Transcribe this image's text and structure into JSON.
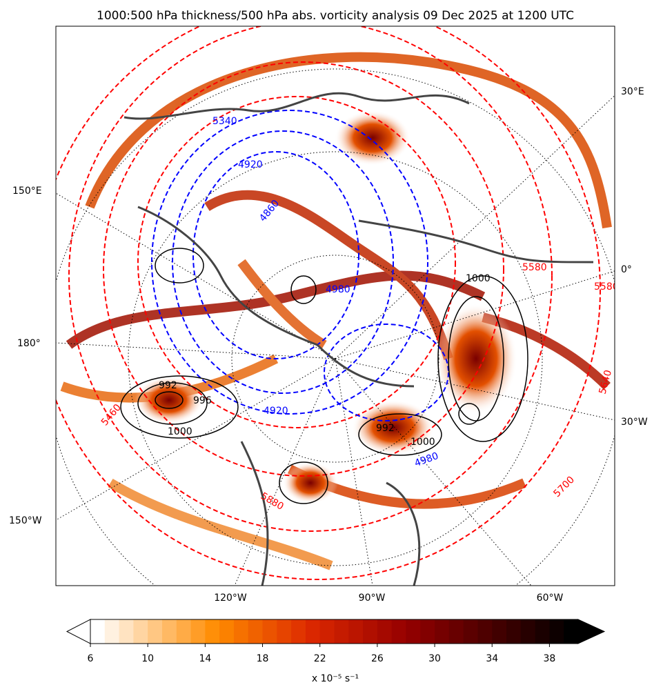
{
  "title": "1000:500 hPa thickness/500 hPa abs. vorticity analysis 09 Dec 2025 at 1200 UTC",
  "map": {
    "longitude_labels": [
      "30°E",
      "150°E",
      "0°",
      "180°",
      "30°W",
      "150°W",
      "120°W",
      "90°W",
      "60°W"
    ],
    "contour_labels": [
      "5340",
      "4920",
      "4860",
      "4980",
      "5580",
      "5580",
      "5640",
      "5700",
      "5880",
      "5460",
      "4920",
      "4980",
      "992",
      "996",
      "1000",
      "1000",
      "1000",
      "992"
    ]
  },
  "colorbar": {
    "range": [
      6,
      40
    ],
    "ticks": [
      6,
      10,
      14,
      18,
      22,
      26,
      30,
      34,
      38
    ],
    "label": "x 10⁻⁵ s⁻¹"
  }
}
